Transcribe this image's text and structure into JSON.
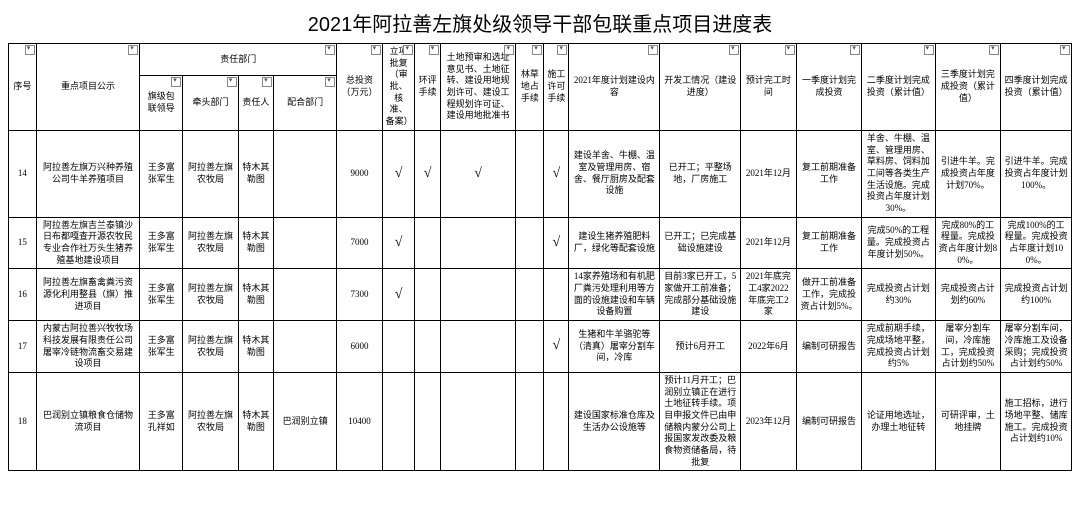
{
  "title": "2021年阿拉善左旗处级领导干部包联重点项目进度表",
  "group_header": "责任部门",
  "headers": {
    "num": "序号",
    "proj": "重点项目公示",
    "leader": "旗级包联领导",
    "dept": "牵头部门",
    "resp": "责任人",
    "coop": "配合部门",
    "inv": "总投资（万元）",
    "approval": "立项批复（审批、核准、备案）",
    "env": "环评手续",
    "land": "土地预审和选址意见书、土地征转、建设用地规划许可、建设工程规划许可证、建设用地批准书",
    "grass": "林草地占手续",
    "cons": "施工许可手续",
    "content": "2021年度计划建设内容",
    "start": "开发工情况（建设进度）",
    "time": "预计完工时间",
    "q1": "一季度计划完成投资",
    "q2": "二季度计划完成投资（累计值）",
    "q3": "三季度计划完成投资（累计值）",
    "q4": "四季度计划完成投资（累计值）"
  },
  "rows": [
    {
      "num": "14",
      "proj": "阿拉善左旗万兴种养殖公司牛羊养殖项目",
      "leader": "王多富\n张军生",
      "dept": "阿拉善左旗农牧局",
      "resp": "特木其勒图",
      "coop": "",
      "inv": "9000",
      "c1": "√",
      "c2": "√",
      "c3": "√",
      "c4": "",
      "c5": "√",
      "c6": "√",
      "content": "建设羊舍、牛棚、温室及管理用房、宿舍、餐厅厨房及配套设施",
      "start": "已开工；平整场地，厂房施工",
      "time": "2021年12月",
      "q1": "复工前期准备工作",
      "q2": "羊舍、牛棚、温室、管理用房、草料房、饲料加工间等各类生产生活设施。完成投资占年度计划30%。",
      "q3": "引进牛羊。完成投资占年度计划70%。",
      "q4": "引进牛羊。完成投资占年度计划100%。"
    },
    {
      "num": "15",
      "proj": "阿拉善左旗吉兰泰镇沙日布都嘎查开源农牧民专业合作社万头生猪养殖基地建设项目",
      "leader": "王多富\n张军生",
      "dept": "阿拉善左旗农牧局",
      "resp": "特木其勒图",
      "coop": "",
      "inv": "7000",
      "c1": "√",
      "c2": "",
      "c3": "",
      "c4": "",
      "c5": "√",
      "c6": "",
      "content": "建设生猪养殖肥料厂，绿化等配套设施",
      "start": "已开工；已完成基础设施建设",
      "time": "2021年12月",
      "q1": "复工前期准备工作",
      "q2": "完成50%的工程量。完成投资占年度计划50%。",
      "q3": "完成80%的工程量。完成投资占年度计划80%。",
      "q4": "完成100%的工程量。完成投资占年度计划100%。"
    },
    {
      "num": "16",
      "proj": "阿拉善左旗畜禽粪污资源化利用整县（旗）推进项目",
      "leader": "王多富\n张军生",
      "dept": "阿拉善左旗农牧局",
      "resp": "特木其勒图",
      "coop": "",
      "inv": "7300",
      "c1": "√",
      "c2": "",
      "c3": "",
      "c4": "",
      "c5": "",
      "c6": "",
      "content": "14家养殖场和有机肥厂粪污处理利用等方面的设施建设和车辆设备购置",
      "start": "目前3家已开工，5家做开工前准备；完成部分基础设施建设",
      "time": "2021年底完工4家2022年底完工2家",
      "q1": "做开工前准备工作，完成投资占计划5%。",
      "q2": "完成投资占计划约30%",
      "q3": "完成投资占计划约60%",
      "q4": "完成投资占计划约100%"
    },
    {
      "num": "17",
      "proj": "内蒙古阿拉善兴牧牧场科技发展有限责任公司屠宰冷链物流畜交易建设项目",
      "leader": "王多富\n张军生",
      "dept": "阿拉善左旗农牧局",
      "resp": "特木其勒图",
      "coop": "",
      "inv": "6000",
      "c1": "",
      "c2": "",
      "c3": "",
      "c4": "",
      "c5": "√",
      "c6": "",
      "content": "生猪和牛羊骆驼等（清真）屠宰分割车间，冷库",
      "start": "预计6月开工",
      "time": "2022年6月",
      "q1": "编制可研报告",
      "q2": "完成前期手续，完成场地平整，完成投资占计划约5%",
      "q3": "屠宰分割车间，冷库施工，完成投资占计划约50%",
      "q4": "屠宰分割车间，冷库施工及设备采购；完成投资占计划约50%"
    },
    {
      "num": "18",
      "proj": "巴润别立镇粮食仓储物流项目",
      "leader": "王多富\n孔祥如",
      "dept": "阿拉善左旗农牧局",
      "resp": "特木其勒图",
      "coop": "巴润别立镇",
      "inv": "10400",
      "c1": "",
      "c2": "",
      "c3": "",
      "c4": "",
      "c5": "",
      "c6": "",
      "content": "建设国家标准仓库及生活办公设施等",
      "start": "预计11月开工；巴润别立镇正在进行土地征转手续。项目申报文件已由申储粮内蒙分公司上报国家发改委及粮食物资储备局，待批复",
      "time": "2023年12月",
      "q1": "编制可研报告",
      "q2": "论证用地选址，办理土地征转",
      "q3": "可研评审，土地挂牌",
      "q4": "施工招标，进行场地平整、储库施工。完成投资占计划约10%"
    }
  ]
}
